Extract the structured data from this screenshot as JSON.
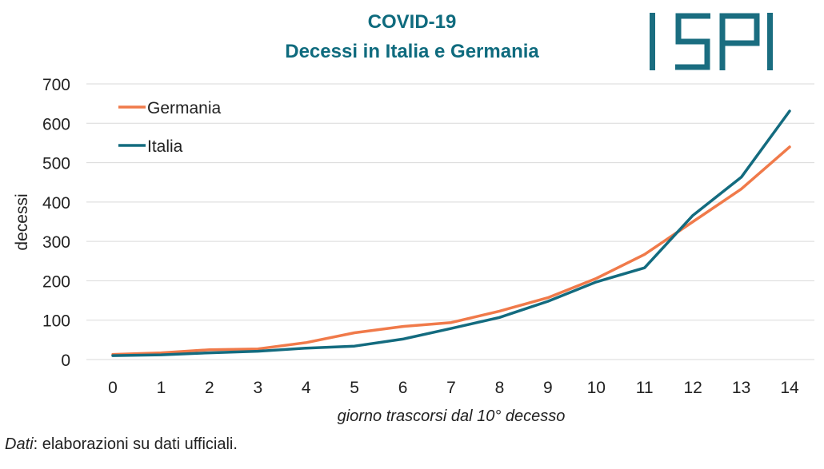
{
  "header": {
    "title": "COVID-19",
    "subtitle": "Decessi in Italia e Germania",
    "logo_text": "ISPI"
  },
  "source": {
    "label": "Dati",
    "text": ": elaborazioni su dati ufficiali."
  },
  "colors": {
    "title": "#0f6b7e",
    "germania": "#f07a4a",
    "italia": "#136b7f",
    "grid": "#d9d9d9",
    "logo": "#1a6d80"
  },
  "chart_data": {
    "type": "line",
    "title": "COVID-19\nDecessi in Italia e Germania",
    "xlabel": "giorno trascorsi dal 10° decesso",
    "ylabel": "decessi",
    "x": [
      0,
      1,
      2,
      3,
      4,
      5,
      6,
      7,
      8,
      9,
      10,
      11,
      12,
      13,
      14
    ],
    "ylim": [
      0,
      700
    ],
    "yticks": [
      0,
      100,
      200,
      300,
      400,
      500,
      600,
      700
    ],
    "grid": true,
    "legend": "top-left",
    "series": [
      {
        "name": "Germania",
        "values": [
          13,
          17,
          25,
          27,
          43,
          68,
          84,
          94,
          123,
          157,
          206,
          267,
          350,
          433,
          540
        ]
      },
      {
        "name": "Italia",
        "values": [
          10,
          12,
          17,
          21,
          29,
          34,
          52,
          79,
          107,
          148,
          197,
          233,
          366,
          463,
          631
        ]
      }
    ]
  }
}
